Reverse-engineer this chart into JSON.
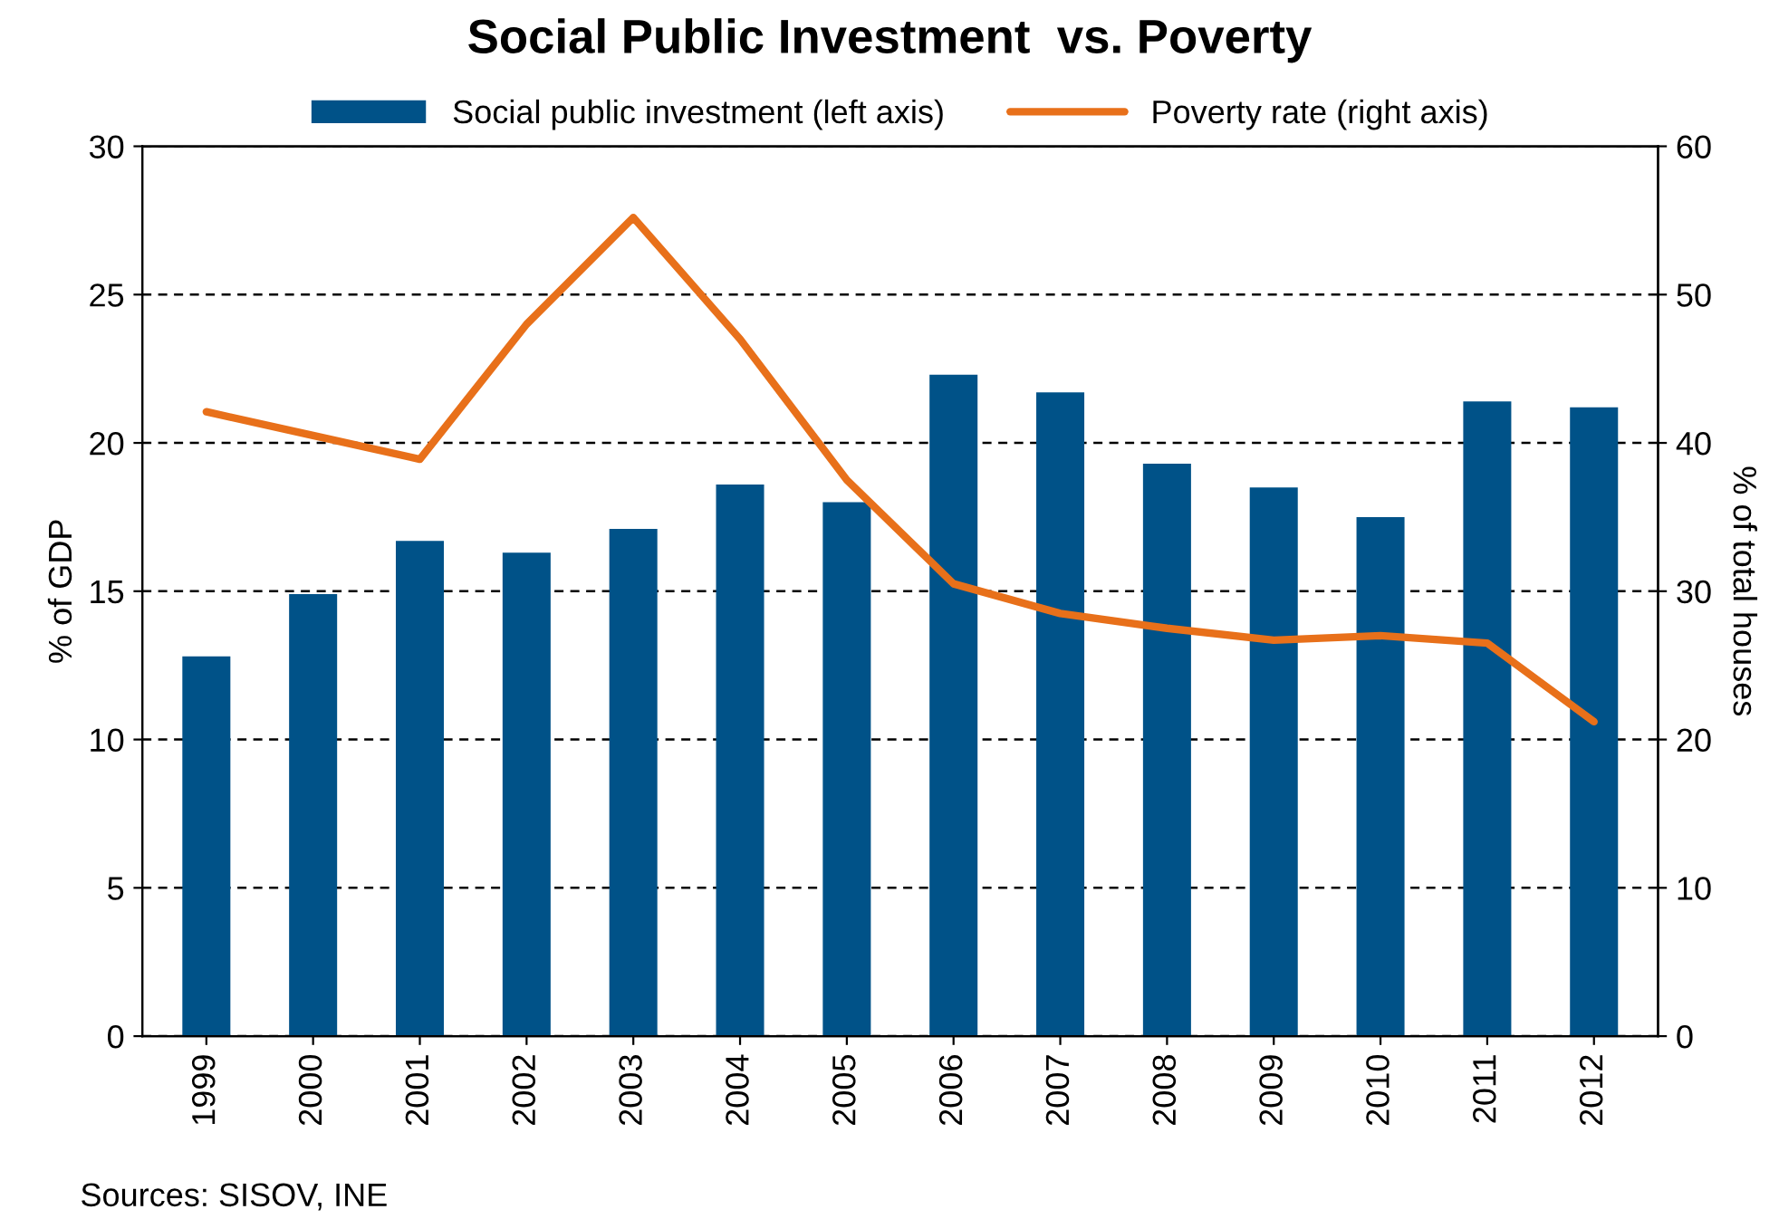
{
  "chart_data": {
    "type": "bar",
    "title": "Social Public Investment  vs. Poverty",
    "categories": [
      "1999",
      "2000",
      "2001",
      "2002",
      "2003",
      "2004",
      "2005",
      "2006",
      "2007",
      "2008",
      "2009",
      "2010",
      "2011",
      "2012"
    ],
    "series": [
      {
        "name": "Social public investment (left axis)",
        "color": "#005288",
        "values": [
          12.8,
          14.9,
          16.7,
          16.3,
          17.1,
          18.6,
          18.0,
          22.3,
          21.7,
          19.3,
          18.5,
          17.5,
          21.4,
          21.2
        ]
      },
      {
        "name": "Poverty rate (right axis)",
        "type": "line",
        "axis": "y2",
        "color": "#e8701a",
        "values": [
          42.1,
          40.5,
          38.9,
          48.0,
          55.2,
          47.0,
          37.5,
          30.5,
          28.5,
          27.5,
          26.7,
          27.0,
          26.5,
          21.2
        ]
      }
    ],
    "ylabel": "% of GDP",
    "y2label": "% of total houses",
    "ylim": [
      0,
      30
    ],
    "yticks": [
      0,
      5,
      10,
      15,
      20,
      25,
      30
    ],
    "y2lim": [
      0,
      60
    ],
    "y2ticks": [
      0,
      10,
      20,
      30,
      40,
      50,
      60
    ],
    "grid": "y",
    "legend": "top",
    "marker": "none",
    "line_style": "solid",
    "annotations": [
      "Sources: SISOV, INE"
    ]
  }
}
